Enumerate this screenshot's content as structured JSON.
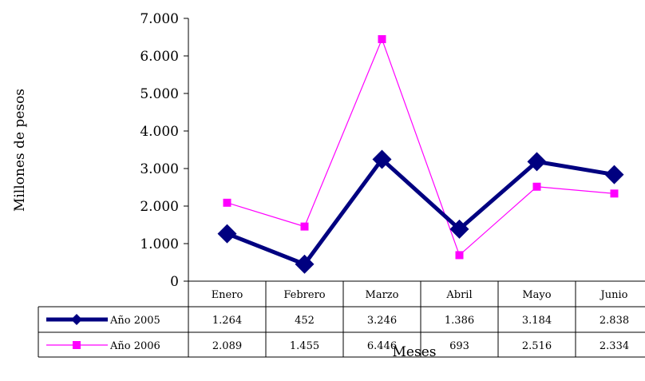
{
  "chart_data": {
    "type": "line",
    "title": "",
    "xlabel": "Meses",
    "ylabel": "Millones de pesos",
    "categories": [
      "Enero",
      "Febrero",
      "Marzo",
      "Abril",
      "Mayo",
      "Junio"
    ],
    "ylim": [
      0,
      7000
    ],
    "yticks": [
      0,
      1000,
      2000,
      3000,
      4000,
      5000,
      6000,
      7000
    ],
    "ytick_labels": [
      "0",
      "1.000",
      "2.000",
      "3.000",
      "4.000",
      "5.000",
      "6.000",
      "7.000"
    ],
    "grid": false,
    "legend": "data-table",
    "series": [
      {
        "name": "Año 2005",
        "color": "#000080",
        "marker": "diamond",
        "line_style": "solid-thick",
        "values": [
          1264,
          452,
          3246,
          1386,
          3184,
          2838
        ],
        "labels": [
          "1.264",
          "452",
          "3.246",
          "1.386",
          "3.184",
          "2.838"
        ]
      },
      {
        "name": "Año 2006",
        "color": "#FF00FF",
        "marker": "square",
        "line_style": "thin",
        "values": [
          2089,
          1455,
          6446,
          693,
          2516,
          2334
        ],
        "labels": [
          "2.089",
          "1.455",
          "6.446",
          "693",
          "2.516",
          "2.334"
        ]
      }
    ]
  }
}
